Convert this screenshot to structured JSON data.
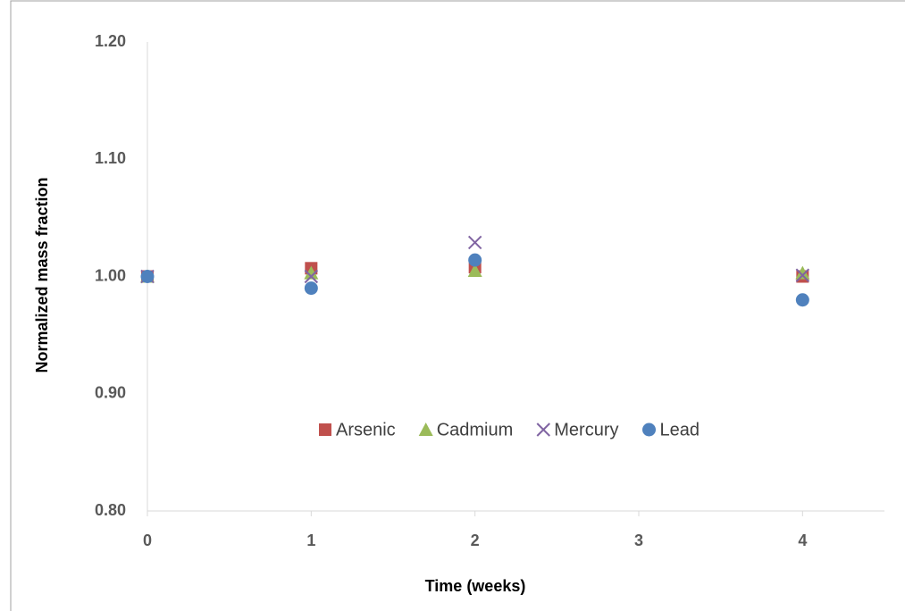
{
  "chart_data": {
    "type": "scatter",
    "x_label": "Time (weeks)",
    "y_label": "Normalized mass fraction",
    "x": [
      0,
      1,
      2,
      4
    ],
    "series": [
      {
        "name": "Arsenic",
        "color": "#c0504d",
        "marker": "square",
        "values": [
          1.0,
          1.007,
          1.008,
          1.0
        ]
      },
      {
        "name": "Cadmium",
        "color": "#9bbb59",
        "marker": "triangle",
        "values": [
          1.0,
          1.003,
          1.005,
          1.003
        ]
      },
      {
        "name": "Mercury",
        "color": "#8064a2",
        "marker": "x",
        "values": [
          1.0,
          1.0,
          1.029,
          1.001
        ]
      },
      {
        "name": "Lead",
        "color": "#4f81bd",
        "marker": "circle",
        "values": [
          1.0,
          0.99,
          1.014,
          0.98
        ]
      }
    ],
    "xlim": [
      0,
      4.5
    ],
    "xticks": [
      0,
      1,
      2,
      3,
      4
    ],
    "ylim": [
      0.8,
      1.2
    ],
    "yticks": [
      {
        "value": 0.8,
        "label": "0.80"
      },
      {
        "value": 0.9,
        "label": "0.90"
      },
      {
        "value": 1.0,
        "label": "1.00"
      },
      {
        "value": 1.1,
        "label": "1.10"
      },
      {
        "value": 1.2,
        "label": "1.20"
      }
    ],
    "grid": false,
    "legend": "center"
  }
}
